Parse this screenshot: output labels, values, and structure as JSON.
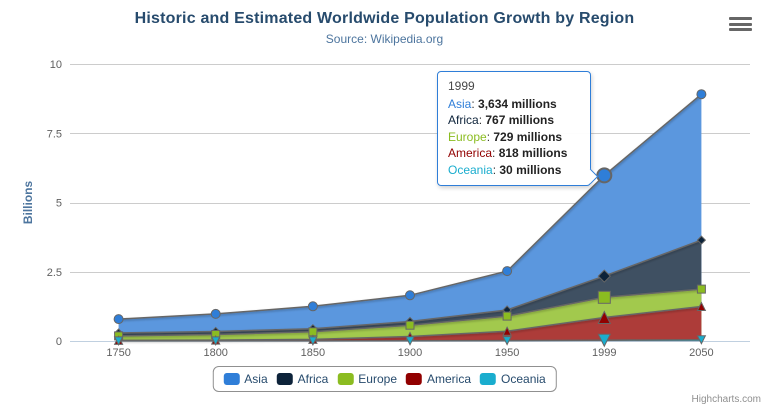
{
  "header": {
    "title": "Historic and Estimated Worldwide Population Growth by Region",
    "subtitle": "Source: Wikipedia.org"
  },
  "credits_label": "Highcharts.com",
  "y_axis": {
    "title": "Billions",
    "tick_labels": [
      "0",
      "2.5",
      "5",
      "7.5",
      "10"
    ],
    "tick_values": [
      0,
      2500,
      5000,
      7500,
      10000
    ]
  },
  "x_axis": {
    "categories": [
      "1750",
      "1800",
      "1850",
      "1900",
      "1950",
      "1999",
      "2050"
    ]
  },
  "tooltip": {
    "header": "1999",
    "unit_suffix": "millions",
    "rows": [
      {
        "name": "Asia",
        "value": "3,634 millions",
        "color": "#2f7ed8"
      },
      {
        "name": "Africa",
        "value": "767 millions",
        "color": "#0d233a"
      },
      {
        "name": "Europe",
        "value": "729 millions",
        "color": "#8bbc21"
      },
      {
        "name": "America",
        "value": "818 millions",
        "color": "#910000"
      },
      {
        "name": "Oceania",
        "value": "30 millions",
        "color": "#1aadce"
      }
    ]
  },
  "legend": {
    "items": [
      {
        "label": "Asia",
        "color": "#2f7ed8"
      },
      {
        "label": "Africa",
        "color": "#0d233a"
      },
      {
        "label": "Europe",
        "color": "#8bbc21"
      },
      {
        "label": "America",
        "color": "#910000"
      },
      {
        "label": "Oceania",
        "color": "#1aadce"
      }
    ]
  },
  "chart_data": {
    "type": "area",
    "stacking": "normal",
    "unit": "millions",
    "title": "Historic and Estimated Worldwide Population Growth by Region",
    "subtitle": "Source: Wikipedia.org",
    "xlabel": "",
    "ylabel": "Billions",
    "ylim": [
      0,
      10000
    ],
    "grid": true,
    "legend_position": "bottom",
    "categories": [
      1750,
      1800,
      1850,
      1900,
      1950,
      1999,
      2050
    ],
    "hover_index": 5,
    "line_color": "#666666",
    "grid_color": "#cccccc",
    "axis_line_color": "#c0d0e0",
    "tick_label_color": "#606060",
    "series": [
      {
        "name": "Asia",
        "color": "#2f7ed8",
        "fill": "#5b97de",
        "marker": "circle",
        "values": [
          502,
          635,
          809,
          947,
          1402,
          3634,
          5268
        ]
      },
      {
        "name": "Africa",
        "color": "#0d233a",
        "fill": "#3f5062",
        "marker": "diamond",
        "values": [
          106,
          107,
          111,
          133,
          221,
          767,
          1766
        ]
      },
      {
        "name": "Europe",
        "color": "#8bbc21",
        "fill": "#a2c94d",
        "marker": "square",
        "values": [
          163,
          203,
          276,
          408,
          547,
          729,
          628
        ]
      },
      {
        "name": "America",
        "color": "#910000",
        "fill": "#ad3c39",
        "marker": "triangle",
        "values": [
          18,
          31,
          54,
          156,
          339,
          818,
          1201
        ]
      },
      {
        "name": "Oceania",
        "color": "#1aadce",
        "fill": "#38b7d5",
        "marker": "triangle-down",
        "values": [
          2,
          2,
          2,
          6,
          13,
          30,
          46
        ]
      }
    ]
  }
}
